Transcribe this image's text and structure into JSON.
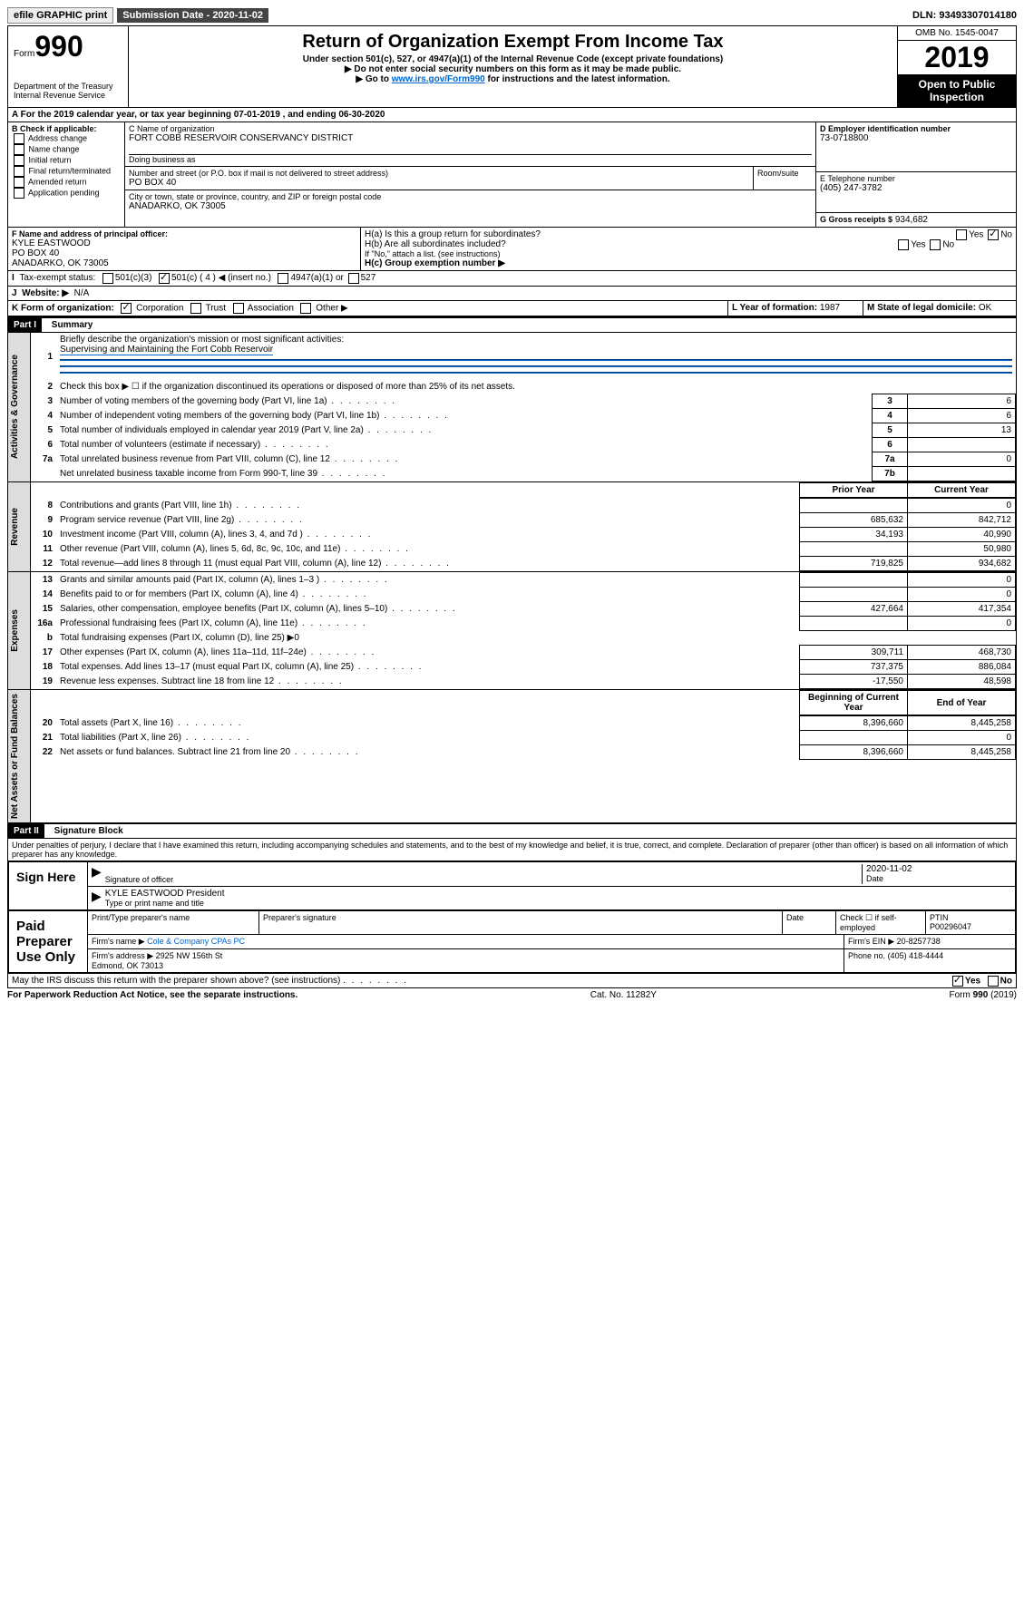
{
  "topbar": {
    "efile": "efile GRAPHIC print",
    "submission_label": "Submission Date - 2020-11-02",
    "dln": "DLN: 93493307014180"
  },
  "header": {
    "form_prefix": "Form",
    "form_num": "990",
    "dept": "Department of the Treasury\nInternal Revenue Service",
    "title": "Return of Organization Exempt From Income Tax",
    "subtitle": "Under section 501(c), 527, or 4947(a)(1) of the Internal Revenue Code (except private foundations)",
    "note1": "▶ Do not enter social security numbers on this form as it may be made public.",
    "note2_pre": "▶ Go to ",
    "note2_link": "www.irs.gov/Form990",
    "note2_post": " for instructions and the latest information.",
    "omb": "OMB No. 1545-0047",
    "year": "2019",
    "public": "Open to Public Inspection"
  },
  "A": {
    "text": "For the 2019 calendar year, or tax year beginning 07-01-2019   , and ending 06-30-2020"
  },
  "B": {
    "label": "B Check if applicable:",
    "items": [
      "Address change",
      "Name change",
      "Initial return",
      "Final return/terminated",
      "Amended return",
      "Application pending"
    ]
  },
  "C": {
    "name_label": "C Name of organization",
    "name": "FORT COBB RESERVOIR CONSERVANCY DISTRICT",
    "dba_label": "Doing business as",
    "addr_label": "Number and street (or P.O. box if mail is not delivered to street address)",
    "room_label": "Room/suite",
    "addr": "PO BOX 40",
    "city_label": "City or town, state or province, country, and ZIP or foreign postal code",
    "city": "ANADARKO, OK  73005"
  },
  "D": {
    "label": "D Employer identification number",
    "value": "73-0718800"
  },
  "E": {
    "label": "E Telephone number",
    "value": "(405) 247-3782"
  },
  "G": {
    "label": "G Gross receipts $",
    "value": "934,682"
  },
  "F": {
    "label": "F  Name and address of principal officer:",
    "name": "KYLE EASTWOOD",
    "addr1": "PO BOX 40",
    "addr2": "ANADARKO, OK  73005"
  },
  "H": {
    "a": "H(a)  Is this a group return for subordinates?",
    "b": "H(b)  Are all subordinates included?",
    "b_note": "If \"No,\" attach a list. (see instructions)",
    "c": "H(c)  Group exemption number ▶"
  },
  "I": {
    "label": "Tax-exempt status:",
    "opts": [
      "501(c)(3)",
      "501(c) ( 4 ) ◀ (insert no.)",
      "4947(a)(1) or",
      "527"
    ]
  },
  "J": {
    "label": "Website: ▶",
    "value": "N/A"
  },
  "K": {
    "label": "K Form of organization:",
    "opts": [
      "Corporation",
      "Trust",
      "Association",
      "Other ▶"
    ]
  },
  "L": {
    "label": "L Year of formation:",
    "value": "1987"
  },
  "M": {
    "label": "M State of legal domicile:",
    "value": "OK"
  },
  "part1": {
    "title": "Part I",
    "subtitle": "Summary",
    "side_ag": "Activities & Governance",
    "side_rev": "Revenue",
    "side_exp": "Expenses",
    "side_net": "Net Assets or Fund Balances",
    "q1": "Briefly describe the organization's mission or most significant activities:",
    "q1_ans": "Supervising and Maintaining the Fort Cobb Reservoir",
    "q2": "Check this box ▶ ☐  if the organization discontinued its operations or disposed of more than 25% of its net assets.",
    "lines": [
      {
        "n": "3",
        "t": "Number of voting members of the governing body (Part VI, line 1a)",
        "box": "3",
        "cur": "6"
      },
      {
        "n": "4",
        "t": "Number of independent voting members of the governing body (Part VI, line 1b)",
        "box": "4",
        "cur": "6"
      },
      {
        "n": "5",
        "t": "Total number of individuals employed in calendar year 2019 (Part V, line 2a)",
        "box": "5",
        "cur": "13"
      },
      {
        "n": "6",
        "t": "Total number of volunteers (estimate if necessary)",
        "box": "6",
        "cur": ""
      },
      {
        "n": "7a",
        "t": "Total unrelated business revenue from Part VIII, column (C), line 12",
        "box": "7a",
        "cur": "0"
      },
      {
        "n": "",
        "t": "Net unrelated business taxable income from Form 990-T, line 39",
        "box": "7b",
        "cur": ""
      }
    ],
    "col_prior": "Prior Year",
    "col_current": "Current Year",
    "rev_lines": [
      {
        "n": "8",
        "t": "Contributions and grants (Part VIII, line 1h)",
        "p": "",
        "c": "0"
      },
      {
        "n": "9",
        "t": "Program service revenue (Part VIII, line 2g)",
        "p": "685,632",
        "c": "842,712"
      },
      {
        "n": "10",
        "t": "Investment income (Part VIII, column (A), lines 3, 4, and 7d )",
        "p": "34,193",
        "c": "40,990"
      },
      {
        "n": "11",
        "t": "Other revenue (Part VIII, column (A), lines 5, 6d, 8c, 9c, 10c, and 11e)",
        "p": "",
        "c": "50,980"
      },
      {
        "n": "12",
        "t": "Total revenue—add lines 8 through 11 (must equal Part VIII, column (A), line 12)",
        "p": "719,825",
        "c": "934,682"
      }
    ],
    "exp_lines": [
      {
        "n": "13",
        "t": "Grants and similar amounts paid (Part IX, column (A), lines 1–3 )",
        "p": "",
        "c": "0"
      },
      {
        "n": "14",
        "t": "Benefits paid to or for members (Part IX, column (A), line 4)",
        "p": "",
        "c": "0"
      },
      {
        "n": "15",
        "t": "Salaries, other compensation, employee benefits (Part IX, column (A), lines 5–10)",
        "p": "427,664",
        "c": "417,354"
      },
      {
        "n": "16a",
        "t": "Professional fundraising fees (Part IX, column (A), line 11e)",
        "p": "",
        "c": "0"
      },
      {
        "n": "b",
        "t": "Total fundraising expenses (Part IX, column (D), line 25) ▶0",
        "p": null,
        "c": null
      },
      {
        "n": "17",
        "t": "Other expenses (Part IX, column (A), lines 11a–11d, 11f–24e)",
        "p": "309,711",
        "c": "468,730"
      },
      {
        "n": "18",
        "t": "Total expenses. Add lines 13–17 (must equal Part IX, column (A), line 25)",
        "p": "737,375",
        "c": "886,084"
      },
      {
        "n": "19",
        "t": "Revenue less expenses. Subtract line 18 from line 12",
        "p": "-17,550",
        "c": "48,598"
      }
    ],
    "col_begin": "Beginning of Current Year",
    "col_end": "End of Year",
    "net_lines": [
      {
        "n": "20",
        "t": "Total assets (Part X, line 16)",
        "p": "8,396,660",
        "c": "8,445,258"
      },
      {
        "n": "21",
        "t": "Total liabilities (Part X, line 26)",
        "p": "",
        "c": "0"
      },
      {
        "n": "22",
        "t": "Net assets or fund balances. Subtract line 21 from line 20",
        "p": "8,396,660",
        "c": "8,445,258"
      }
    ]
  },
  "part2": {
    "title": "Part II",
    "subtitle": "Signature Block",
    "perjury": "Under penalties of perjury, I declare that I have examined this return, including accompanying schedules and statements, and to the best of my knowledge and belief, it is true, correct, and complete. Declaration of preparer (other than officer) is based on all information of which preparer has any knowledge.",
    "sign_here": "Sign Here",
    "sig_officer": "Signature of officer",
    "sig_date": "2020-11-02",
    "date_label": "Date",
    "officer_name": "KYLE EASTWOOD  President",
    "type_name": "Type or print name and title",
    "paid": "Paid Preparer Use Only",
    "prep_name_label": "Print/Type preparer's name",
    "prep_sig_label": "Preparer's signature",
    "prep_date_label": "Date",
    "check_self": "Check ☐ if self-employed",
    "ptin_label": "PTIN",
    "ptin": "P00296047",
    "firm_name_label": "Firm's name    ▶",
    "firm_name": "Cole & Company CPAs PC",
    "firm_ein_label": "Firm's EIN ▶",
    "firm_ein": "20-8257738",
    "firm_addr_label": "Firm's address ▶",
    "firm_addr": "2925 NW 156th St\nEdmond, OK  73013",
    "phone_label": "Phone no.",
    "phone": "(405) 418-4444",
    "discuss": "May the IRS discuss this return with the preparer shown above? (see instructions)",
    "yes": "Yes",
    "no": "No"
  },
  "footer": {
    "left": "For Paperwork Reduction Act Notice, see the separate instructions.",
    "mid": "Cat. No. 11282Y",
    "right": "Form 990 (2019)"
  }
}
